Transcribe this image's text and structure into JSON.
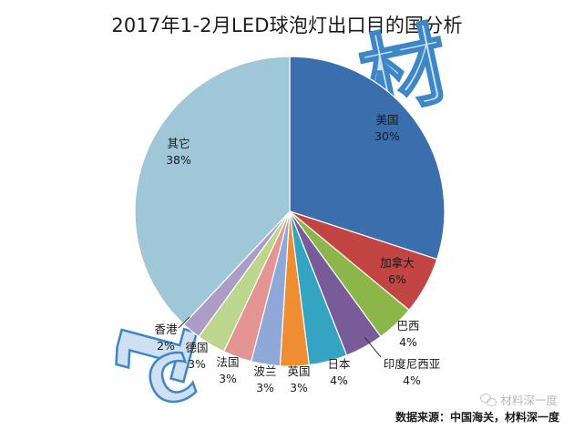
{
  "chart_data": {
    "type": "pie",
    "title": "2017年1-2月LED球泡灯出口目的国分析",
    "start_angle_deg": 0,
    "direction": "clockwise",
    "slices": [
      {
        "label": "美国",
        "value": 30,
        "pct_label": "30%",
        "color": "#3a6ead"
      },
      {
        "label": "加拿大",
        "value": 6,
        "pct_label": "6%",
        "color": "#c34543"
      },
      {
        "label": "巴西",
        "value": 4,
        "pct_label": "4%",
        "color": "#8cb54a"
      },
      {
        "label": "印度尼西亚",
        "value": 4,
        "pct_label": "4%",
        "color": "#7a5b9a"
      },
      {
        "label": "日本",
        "value": 4,
        "pct_label": "4%",
        "color": "#35a4c2"
      },
      {
        "label": "英国",
        "value": 3,
        "pct_label": "3%",
        "color": "#ef8d33"
      },
      {
        "label": "波兰",
        "value": 3,
        "pct_label": "3%",
        "color": "#8fa8d7"
      },
      {
        "label": "法国",
        "value": 3,
        "pct_label": "3%",
        "color": "#e39493"
      },
      {
        "label": "德国",
        "value": 3,
        "pct_label": "3%",
        "color": "#bcd68e"
      },
      {
        "label": "香港",
        "value": 2,
        "pct_label": "2%",
        "color": "#ad9cc5"
      },
      {
        "label": "其它",
        "value": 38,
        "pct_label": "38%",
        "color": "#9fc7d8"
      }
    ]
  },
  "watermark": {
    "text": "材料",
    "big_chars": [
      "材",
      "1",
      "C"
    ],
    "color": "#3d86c8"
  },
  "footer": {
    "source": "数据来源：中国海关，材料深一度",
    "wechat_label": "材料深一度"
  }
}
